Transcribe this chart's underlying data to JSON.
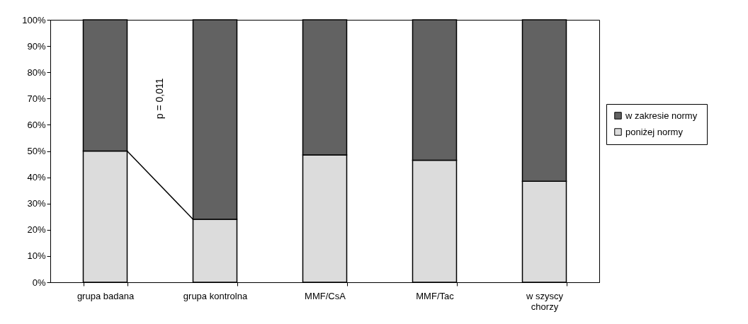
{
  "chart_data": {
    "type": "bar",
    "stacked": true,
    "categories": [
      "grupa badana",
      "grupa kontrolna",
      "MMF/CsA",
      "MMF/Tac",
      "w szyscy chorzy"
    ],
    "series": [
      {
        "name": "poniżej normy",
        "color": "#dcdcdc",
        "values": [
          50,
          24,
          48.5,
          46.5,
          38.5
        ]
      },
      {
        "name": "w  zakresie normy",
        "color": "#626262",
        "values": [
          50,
          76,
          51.5,
          53.5,
          61.5
        ]
      }
    ],
    "ylim": [
      0,
      100
    ],
    "yticks": [
      {
        "value": 0,
        "label": "0%"
      },
      {
        "value": 10,
        "label": "10%"
      },
      {
        "value": 20,
        "label": "20%"
      },
      {
        "value": 30,
        "label": "30%"
      },
      {
        "value": 40,
        "label": "40%"
      },
      {
        "value": 50,
        "label": "50%"
      },
      {
        "value": 60,
        "label": "60%"
      },
      {
        "value": 70,
        "label": "70%"
      },
      {
        "value": 80,
        "label": "80%"
      },
      {
        "value": 90,
        "label": "90%"
      },
      {
        "value": 100,
        "label": "100%"
      }
    ],
    "annotations": [
      "p = 0,011"
    ],
    "grid": false,
    "legend": "right"
  }
}
